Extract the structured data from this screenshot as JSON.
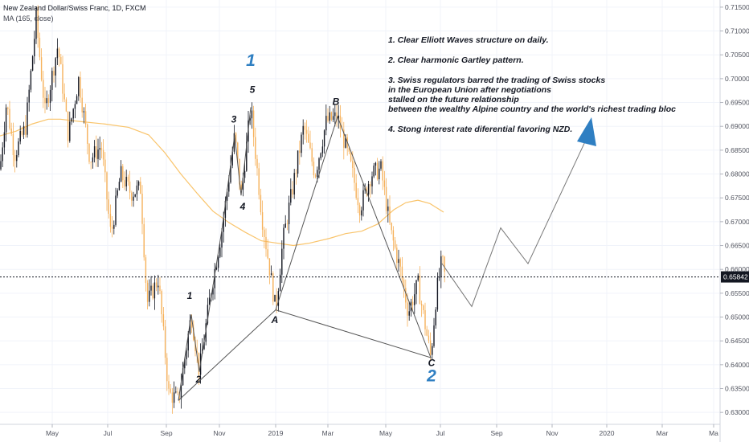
{
  "header": {
    "symbol_title": "New Zealand Dollar/Swiss Franc, 1D, FXCM",
    "indicator": "MA (165, close)"
  },
  "notes": {
    "n1": "1. Clear Elliott Waves structure on daily.",
    "n2": "2. Clear harmonic Gartley pattern.",
    "n3": [
      "3. Swiss regulators barred the trading of Swiss stocks",
      "in the European Union after negotiations",
      "stalled  on the future relationship",
      "between the wealthy Alpine country and the world's richest trading bloc"
    ],
    "n4": "4. Stong interest rate diferential favoring NZD."
  },
  "price_label": "0.65842",
  "colors": {
    "up_candle": "#131722",
    "down_candle": "#f6b15a",
    "ma": "#f9c46b",
    "pattern": "#555555",
    "arrow": "#2f7fc2",
    "big_label": "#2f7fc2"
  },
  "chart_data": {
    "type": "line",
    "instrument": "New Zealand Dollar/Swiss Franc, 1D, FXCM",
    "y_ticks": [
      "0.71500",
      "0.71000",
      "0.70500",
      "0.70000",
      "0.69500",
      "0.69000",
      "0.68500",
      "0.68000",
      "0.67500",
      "0.67000",
      "0.66500",
      "0.66000",
      "0.65500",
      "0.65000",
      "0.64500",
      "0.64000",
      "0.63500",
      "0.63000"
    ],
    "x_ticks": [
      "May",
      "Jul",
      "Sep",
      "Nov",
      "2019",
      "Mar",
      "May",
      "Jul",
      "Sep",
      "Nov",
      "2020",
      "Mar",
      "Ma"
    ],
    "ylim": [
      0.6275,
      0.7165
    ],
    "current_price": 0.65842,
    "series": [
      {
        "name": "MA (165, close)",
        "points": [
          [
            0,
            0.688
          ],
          [
            20,
            0.689
          ],
          [
            40,
            0.6905
          ],
          [
            60,
            0.6915
          ],
          [
            75,
            0.6915
          ],
          [
            100,
            0.691
          ],
          [
            130,
            0.6905
          ],
          [
            160,
            0.6898
          ],
          [
            185,
            0.6882
          ],
          [
            205,
            0.6845
          ],
          [
            225,
            0.68
          ],
          [
            245,
            0.676
          ],
          [
            265,
            0.6722
          ],
          [
            285,
            0.6698
          ],
          [
            305,
            0.6678
          ],
          [
            325,
            0.666
          ],
          [
            345,
            0.6655
          ],
          [
            365,
            0.665
          ],
          [
            385,
            0.6655
          ],
          [
            410,
            0.6665
          ],
          [
            430,
            0.6675
          ],
          [
            450,
            0.668
          ],
          [
            470,
            0.6695
          ],
          [
            490,
            0.6725
          ],
          [
            505,
            0.674
          ],
          [
            520,
            0.6745
          ],
          [
            535,
            0.6738
          ],
          [
            552,
            0.672
          ]
        ]
      },
      {
        "name": "Elliott wave",
        "points": [
          [
            222,
            0.6325
          ],
          [
            238,
            0.6505
          ],
          [
            248,
            0.6385
          ],
          [
            276,
            0.6682
          ],
          [
            292,
            0.6882
          ],
          [
            300,
            0.6755
          ],
          [
            312,
            0.694
          ]
        ]
      },
      {
        "name": "Gartley pattern",
        "points": [
          [
            222,
            0.6325
          ],
          [
            343,
            0.6515
          ],
          [
            420,
            0.692
          ],
          [
            536,
            0.6415
          ],
          [
            343,
            0.6515
          ]
        ]
      },
      {
        "name": "Projection",
        "points": [
          [
            550,
            0.6612
          ],
          [
            587,
            0.6522
          ],
          [
            623,
            0.6687
          ],
          [
            657,
            0.6612
          ],
          [
            730,
            0.6875
          ]
        ]
      }
    ],
    "labels": [
      {
        "text": "1",
        "x": 236,
        "y": 0.6538,
        "size": "small"
      },
      {
        "text": "2",
        "x": 247,
        "y": 0.6363,
        "size": "small"
      },
      {
        "text": "3",
        "x": 291,
        "y": 0.6908,
        "size": "small"
      },
      {
        "text": "4",
        "x": 302,
        "y": 0.6725,
        "size": "small"
      },
      {
        "text": "5",
        "x": 314,
        "y": 0.697,
        "size": "small"
      },
      {
        "text": "1",
        "x": 312,
        "y": 0.7027,
        "size": "big"
      },
      {
        "text": "A",
        "x": 342,
        "y": 0.6487,
        "size": "small"
      },
      {
        "text": "B",
        "x": 418,
        "y": 0.6945,
        "size": "small"
      },
      {
        "text": "C",
        "x": 537,
        "y": 0.6397,
        "size": "small"
      },
      {
        "text": "2",
        "x": 537,
        "y": 0.6365,
        "size": "big"
      }
    ]
  }
}
